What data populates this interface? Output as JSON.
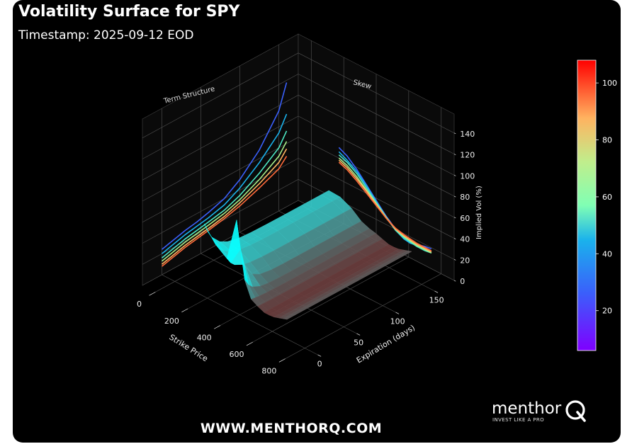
{
  "header": {
    "title": "Volatility Surface for SPY",
    "subtitle": "Timestamp: 2025-09-12 EOD"
  },
  "footer": {
    "url": "WWW.MENTHORQ.COM",
    "logo_word": "menthor",
    "logo_tagline": "INVEST LIKE A PRO"
  },
  "colors": {
    "background": "#000000",
    "text": "#ffffff",
    "grid": "#555555"
  },
  "chart_data": {
    "type": "surface3d",
    "title": "Volatility Surface for SPY",
    "xlabel": "Strike Price",
    "ylabel": "Expiration (days)",
    "zlabel": "Implied Vol (%)",
    "x_ticks": [
      0,
      200,
      400,
      600,
      800
    ],
    "y_ticks": [
      0,
      50,
      100,
      150
    ],
    "z_ticks": [
      0,
      20,
      40,
      60,
      80,
      100,
      120,
      140
    ],
    "xlim": [
      -80,
      880
    ],
    "ylim": [
      -25,
      175
    ],
    "zlim": [
      0,
      158
    ],
    "colorbar": {
      "ticks": [
        20,
        40,
        60,
        80,
        100
      ],
      "range": [
        6,
        108
      ],
      "colormap": "rainbow"
    },
    "projection_labels": {
      "term_structure": "Term Structure",
      "skew": "Skew"
    },
    "surface_strikes": [
      180,
      250,
      320,
      380,
      430,
      470,
      510,
      550,
      580,
      610,
      640,
      665,
      690
    ],
    "surface_expirations": [
      0,
      5,
      10,
      20,
      30,
      45,
      60,
      80,
      100,
      125,
      150,
      160
    ],
    "term_structure_lines": [
      {
        "vols": [
          24,
          25,
          26,
          28,
          30,
          32,
          35,
          40,
          50,
          68,
          95,
          118
        ]
      },
      {
        "vols": [
          20,
          21,
          22,
          24,
          26,
          28,
          30,
          34,
          42,
          56,
          74,
          88
        ]
      },
      {
        "vols": [
          16,
          17,
          18,
          20,
          22,
          24,
          26,
          29,
          35,
          46,
          60,
          72
        ]
      },
      {
        "vols": [
          13,
          14,
          15,
          17,
          19,
          21,
          23,
          26,
          31,
          40,
          52,
          62
        ]
      },
      {
        "vols": [
          10,
          11,
          12,
          14,
          16,
          18,
          20,
          23,
          28,
          36,
          46,
          55
        ]
      },
      {
        "vols": [
          8,
          9,
          10,
          12,
          14,
          16,
          18,
          21,
          25,
          32,
          40,
          48
        ]
      }
    ],
    "skew_lines": [
      {
        "vols": [
          70,
          66,
          58,
          48,
          38,
          28,
          20,
          15,
          14,
          16,
          18,
          19
        ]
      },
      {
        "vols": [
          66,
          62,
          56,
          47,
          37,
          27,
          19,
          15,
          14,
          15,
          16,
          16
        ]
      },
      {
        "vols": [
          63,
          60,
          54,
          45,
          36,
          27,
          19,
          16,
          15,
          14,
          14,
          15
        ]
      },
      {
        "vols": [
          60,
          57,
          51,
          43,
          35,
          27,
          20,
          17,
          16,
          15,
          15,
          15
        ]
      },
      {
        "vols": [
          58,
          55,
          49,
          42,
          34,
          26,
          20,
          18,
          17,
          16,
          16,
          16
        ]
      },
      {
        "vols": [
          56,
          53,
          47,
          40,
          33,
          26,
          21,
          19,
          18,
          17,
          17,
          17
        ]
      }
    ]
  }
}
